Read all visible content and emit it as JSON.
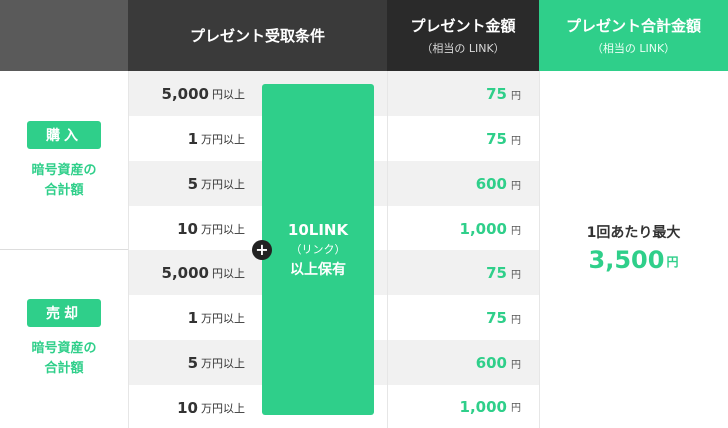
{
  "header": {
    "condition": "プレゼント受取条件",
    "amount_title": "プレゼント金額",
    "amount_sub": "（相当の LINK）",
    "total_title": "プレゼント合計金額",
    "total_sub": "（相当の LINK）"
  },
  "groups": [
    {
      "badge": "購入",
      "desc_line1": "暗号資産の",
      "desc_line2": "合計額"
    },
    {
      "badge": "売却",
      "desc_line1": "暗号資産の",
      "desc_line2": "合計額"
    }
  ],
  "rows": [
    {
      "num": "5,000",
      "unit": "円以上",
      "amount": "75",
      "amount_unit": "円"
    },
    {
      "num": "1",
      "unit": "万円以上",
      "amount": "75",
      "amount_unit": "円"
    },
    {
      "num": "5",
      "unit": "万円以上",
      "amount": "600",
      "amount_unit": "円"
    },
    {
      "num": "10",
      "unit": "万円以上",
      "amount": "1,000",
      "amount_unit": "円"
    },
    {
      "num": "5,000",
      "unit": "円以上",
      "amount": "75",
      "amount_unit": "円"
    },
    {
      "num": "1",
      "unit": "万円以上",
      "amount": "75",
      "amount_unit": "円"
    },
    {
      "num": "5",
      "unit": "万円以上",
      "amount": "600",
      "amount_unit": "円"
    },
    {
      "num": "10",
      "unit": "万円以上",
      "amount": "1,000",
      "amount_unit": "円"
    }
  ],
  "holding": {
    "main": "10LINK",
    "sub": "（リンク）",
    "foot": "以上保有"
  },
  "plus_symbol": "+",
  "total": {
    "label": "1回あたり最大",
    "value": "3,500",
    "unit": "円"
  },
  "colors": {
    "accent": "#2fcf8a",
    "header_dark": "#3a3a3a",
    "row_gray": "#f1f1f1"
  }
}
